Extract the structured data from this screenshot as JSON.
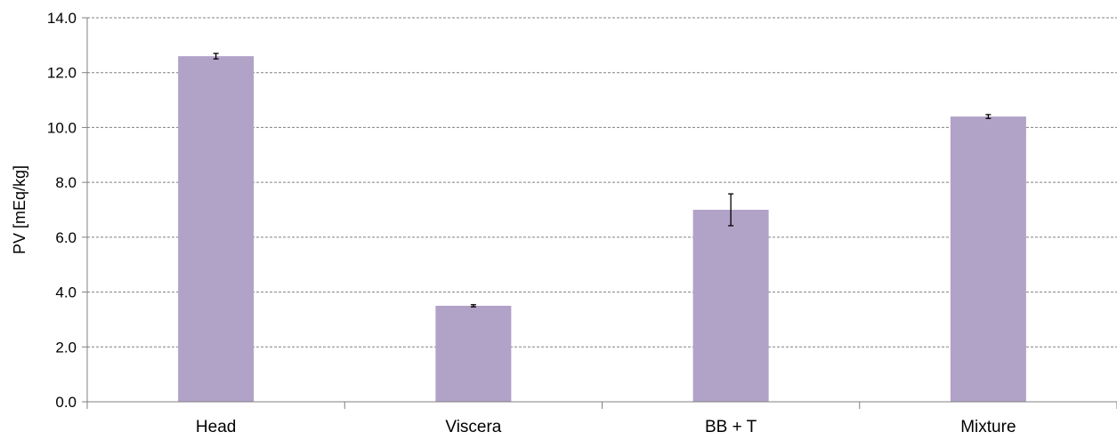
{
  "chart_data": {
    "type": "bar",
    "categories": [
      "Head",
      "Viscera",
      "BB + T",
      "Mixture"
    ],
    "values": [
      12.6,
      3.5,
      7.0,
      10.4
    ],
    "errors": [
      0.1,
      0.04,
      0.58,
      0.07
    ],
    "ylabel": "PV [mEq/kg]",
    "xlabel": "",
    "ylim": [
      0,
      14
    ],
    "yticks": [
      "0.0",
      "2.0",
      "4.0",
      "6.0",
      "8.0",
      "10.0",
      "12.0",
      "14.0"
    ],
    "grid": true,
    "grid_style": "dashed",
    "bar_color": "#b1a2c8",
    "error_bar_color": "#000000"
  }
}
